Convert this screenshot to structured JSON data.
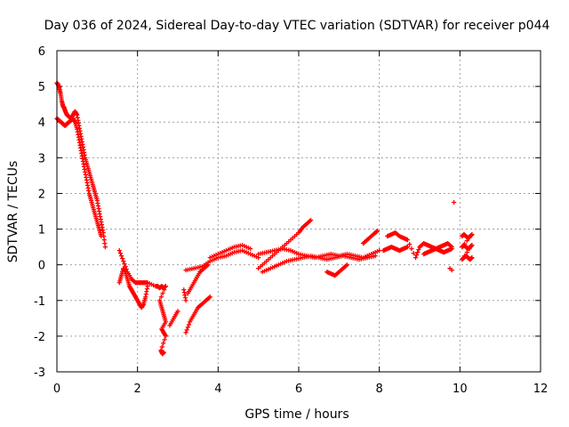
{
  "chart_data": {
    "type": "scatter",
    "title": "Day 036 of 2024, Sidereal Day-to-day VTEC variation (SDTVAR) for receiver p044",
    "xlabel": "GPS time / hours",
    "ylabel": "SDTVAR / TECUs",
    "xlim": [
      0,
      12
    ],
    "ylim": [
      -3,
      6
    ],
    "xticks": [
      "0",
      "2",
      "4",
      "6",
      "8",
      "10",
      "12"
    ],
    "yticks": [
      "-3",
      "-2",
      "-1",
      "0",
      "1",
      "2",
      "3",
      "4",
      "5",
      "6"
    ],
    "grid": true,
    "marker": "+",
    "color": "#ff0000",
    "series": [
      {
        "name": "SDTVAR p044",
        "x": [
          0.0,
          0.03,
          0.06,
          0.09,
          0.12,
          0.15,
          0.18,
          0.21,
          0.25,
          0.3,
          0.35,
          0.4,
          0.45,
          0.5,
          0.55,
          0.6,
          0.65,
          0.7,
          0.75,
          0.8,
          0.85,
          0.9,
          0.95,
          1.0,
          1.05,
          1.1,
          1.15,
          1.2,
          0.0,
          0.05,
          0.1,
          0.15,
          0.2,
          0.25,
          0.3,
          0.35,
          0.4,
          0.45,
          0.5,
          0.55,
          0.6,
          0.65,
          0.7,
          0.75,
          0.8,
          0.85,
          0.9,
          0.95,
          1.0,
          1.05,
          1.1,
          1.55,
          1.6,
          1.65,
          1.7,
          1.75,
          1.8,
          1.85,
          1.9,
          1.95,
          2.0,
          2.05,
          2.1,
          2.15,
          2.2,
          2.25,
          1.55,
          1.65,
          1.75,
          1.85,
          1.95,
          2.05,
          2.15,
          2.25,
          2.45,
          2.5,
          2.55,
          2.6,
          2.65,
          2.7,
          2.55,
          2.6,
          2.65,
          2.7,
          2.6,
          2.65,
          2.7,
          2.58,
          2.62,
          2.65,
          2.8,
          2.9,
          3.0,
          3.15,
          3.2,
          3.2,
          3.3,
          3.4,
          3.5,
          3.6,
          3.7,
          3.8,
          3.25,
          3.35,
          3.45,
          3.55,
          3.65,
          3.75,
          3.2,
          3.4,
          3.6,
          3.8,
          4.0,
          4.2,
          4.4,
          4.6,
          4.8,
          5.0,
          3.8,
          4.0,
          4.2,
          4.4,
          4.6,
          4.8,
          5.0,
          5.2,
          5.4,
          5.6,
          5.8,
          6.0,
          6.1,
          6.2,
          6.3,
          5.0,
          5.2,
          5.4,
          5.6,
          5.8,
          6.0,
          6.2,
          6.4,
          6.6,
          6.8,
          7.0,
          7.2,
          7.4,
          7.6,
          7.8,
          8.0,
          5.1,
          5.3,
          5.5,
          5.7,
          5.9,
          6.1,
          6.3,
          6.5,
          6.7,
          6.9,
          7.1,
          7.3,
          7.5,
          7.7,
          7.9,
          6.7,
          6.8,
          6.9,
          7.0,
          7.1,
          7.2,
          7.6,
          7.7,
          7.8,
          7.9,
          7.95,
          8.1,
          8.2,
          8.3,
          8.4,
          8.5,
          8.6,
          8.7,
          8.2,
          8.3,
          8.4,
          8.5,
          8.6,
          8.7,
          8.9,
          9.0,
          9.1,
          9.2,
          9.3,
          9.4,
          9.5,
          9.6,
          9.7,
          9.8,
          9.1,
          9.2,
          9.3,
          9.4,
          9.5,
          9.6,
          9.7,
          9.8,
          9.8,
          9.85,
          9.75,
          10.05,
          10.1,
          10.15,
          10.2,
          10.25,
          10.3,
          10.05,
          10.1,
          10.15,
          10.2,
          10.25,
          10.3,
          10.05,
          10.1,
          10.15,
          10.2,
          10.25,
          10.3
        ],
        "y": [
          5.1,
          5.05,
          4.95,
          4.8,
          4.6,
          4.45,
          4.4,
          4.3,
          4.2,
          4.15,
          4.1,
          4.2,
          4.3,
          4.2,
          3.9,
          3.6,
          3.3,
          3.0,
          2.8,
          2.6,
          2.4,
          2.2,
          2.0,
          1.8,
          1.5,
          1.2,
          0.9,
          0.5,
          4.1,
          4.05,
          4.0,
          3.95,
          3.9,
          3.95,
          4.0,
          4.05,
          4.1,
          4.0,
          3.8,
          3.5,
          3.2,
          2.9,
          2.6,
          2.3,
          2.0,
          1.8,
          1.6,
          1.4,
          1.2,
          1.0,
          0.8,
          -0.5,
          -0.3,
          -0.1,
          -0.2,
          -0.4,
          -0.6,
          -0.7,
          -0.8,
          -0.9,
          -1.0,
          -1.1,
          -1.2,
          -1.1,
          -0.9,
          -0.6,
          0.4,
          0.1,
          -0.2,
          -0.4,
          -0.5,
          -0.5,
          -0.5,
          -0.5,
          -0.6,
          -0.6,
          -0.65,
          -0.6,
          -0.65,
          -0.6,
          -1.0,
          -1.2,
          -1.4,
          -1.6,
          -1.8,
          -1.9,
          -2.0,
          -2.4,
          -2.5,
          -2.45,
          -1.7,
          -1.5,
          -1.3,
          -0.7,
          -1.0,
          -1.9,
          -1.6,
          -1.4,
          -1.2,
          -1.1,
          -1.0,
          -0.9,
          -0.8,
          -0.6,
          -0.4,
          -0.2,
          -0.1,
          0.0,
          -0.15,
          -0.1,
          -0.05,
          0.1,
          0.2,
          0.25,
          0.35,
          0.4,
          0.3,
          0.2,
          0.2,
          0.3,
          0.4,
          0.5,
          0.55,
          0.45,
          -0.1,
          0.1,
          0.3,
          0.5,
          0.7,
          0.9,
          1.05,
          1.15,
          1.25,
          0.3,
          0.35,
          0.4,
          0.45,
          0.4,
          0.3,
          0.25,
          0.2,
          0.25,
          0.3,
          0.25,
          0.3,
          0.25,
          0.2,
          0.3,
          0.4,
          -0.2,
          -0.1,
          0.0,
          0.1,
          0.15,
          0.2,
          0.25,
          0.2,
          0.15,
          0.2,
          0.25,
          0.2,
          0.15,
          0.2,
          0.25,
          -0.2,
          -0.25,
          -0.3,
          -0.2,
          -0.1,
          0.0,
          0.6,
          0.7,
          0.8,
          0.9,
          0.95,
          0.4,
          0.45,
          0.5,
          0.45,
          0.4,
          0.45,
          0.5,
          0.8,
          0.85,
          0.9,
          0.8,
          0.75,
          0.7,
          0.2,
          0.5,
          0.6,
          0.55,
          0.5,
          0.45,
          0.5,
          0.55,
          0.6,
          0.5,
          0.3,
          0.35,
          0.4,
          0.45,
          0.4,
          0.35,
          0.4,
          0.45,
          -0.15,
          1.75,
          -0.1,
          0.8,
          0.85,
          0.8,
          0.75,
          0.8,
          0.85,
          0.5,
          0.55,
          0.5,
          0.45,
          0.5,
          0.55,
          0.15,
          0.2,
          0.25,
          0.2,
          0.15,
          0.2
        ]
      }
    ]
  }
}
